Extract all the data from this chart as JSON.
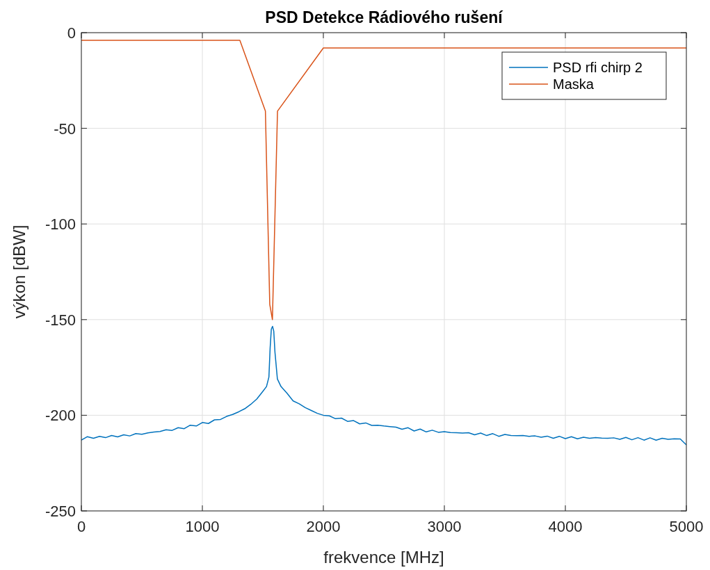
{
  "chart_data": {
    "type": "line",
    "title": "PSD Detekce Rádiového rušení",
    "xlabel": "frekvence [MHz]",
    "ylabel": "výkon [dBW]",
    "xlim": [
      0,
      5000
    ],
    "ylim": [
      -250,
      0
    ],
    "xticks": [
      0,
      1000,
      2000,
      3000,
      4000,
      5000
    ],
    "yticks": [
      -250,
      -200,
      -150,
      -100,
      -50,
      0
    ],
    "grid": true,
    "legend": "top right",
    "series": [
      {
        "name": "PSD rfi chirp 2",
        "color": "#0072bd",
        "x": [
          0,
          50,
          100,
          150,
          200,
          250,
          300,
          350,
          400,
          450,
          500,
          550,
          600,
          650,
          700,
          750,
          800,
          850,
          900,
          950,
          1000,
          1050,
          1100,
          1150,
          1200,
          1250,
          1300,
          1350,
          1400,
          1450,
          1500,
          1530,
          1550,
          1560,
          1570,
          1580,
          1590,
          1600,
          1620,
          1650,
          1700,
          1750,
          1800,
          1850,
          1900,
          1950,
          2000,
          2050,
          2100,
          2150,
          2200,
          2250,
          2300,
          2350,
          2400,
          2450,
          2500,
          2550,
          2600,
          2650,
          2700,
          2750,
          2800,
          2850,
          2900,
          2950,
          3000,
          3050,
          3100,
          3150,
          3200,
          3250,
          3300,
          3350,
          3400,
          3450,
          3500,
          3550,
          3600,
          3650,
          3700,
          3750,
          3800,
          3850,
          3900,
          3950,
          4000,
          4050,
          4100,
          4150,
          4200,
          4250,
          4300,
          4350,
          4400,
          4450,
          4500,
          4550,
          4600,
          4650,
          4700,
          4750,
          4800,
          4850,
          4900,
          4950,
          5000
        ],
        "values": [
          -213,
          -211.2,
          -212,
          -211,
          -211.7,
          -210.6,
          -211.3,
          -210.2,
          -210.8,
          -209.6,
          -209.9,
          -209.2,
          -208.8,
          -208.5,
          -207.6,
          -207.9,
          -206.5,
          -207,
          -205.2,
          -205.6,
          -203.8,
          -204.3,
          -202.4,
          -202.2,
          -200.6,
          -199.6,
          -198.2,
          -196.6,
          -194.3,
          -191.5,
          -187.5,
          -185,
          -180,
          -165,
          -155,
          -153.5,
          -156,
          -167,
          -181,
          -185,
          -188.5,
          -192.5,
          -194,
          -196,
          -197.5,
          -199,
          -200,
          -200.3,
          -201.8,
          -201.5,
          -203.2,
          -202.8,
          -204.5,
          -204,
          -205.3,
          -205.2,
          -205.6,
          -205.9,
          -206.2,
          -207.3,
          -206.5,
          -208.2,
          -207.2,
          -208.7,
          -207.8,
          -208.9,
          -208.6,
          -209,
          -209.1,
          -209.3,
          -209.1,
          -210.2,
          -209.3,
          -210.6,
          -209.6,
          -211,
          -210,
          -210.6,
          -210.7,
          -210.6,
          -211,
          -210.8,
          -211.5,
          -210.9,
          -212,
          -211,
          -212.2,
          -211.2,
          -212.3,
          -211.5,
          -212,
          -211.7,
          -211.9,
          -212,
          -211.8,
          -212.6,
          -211.6,
          -212.8,
          -211.7,
          -213,
          -211.8,
          -213,
          -212,
          -212.6,
          -212.3,
          -212.4,
          -215.5
        ]
      },
      {
        "name": "Maska",
        "color": "#d95319",
        "x": [
          0,
          1310,
          1521,
          1557,
          1579,
          1621,
          2000,
          5000
        ],
        "values": [
          -4,
          -4,
          -41,
          -142,
          -150,
          -41,
          -8,
          -8
        ]
      }
    ]
  }
}
